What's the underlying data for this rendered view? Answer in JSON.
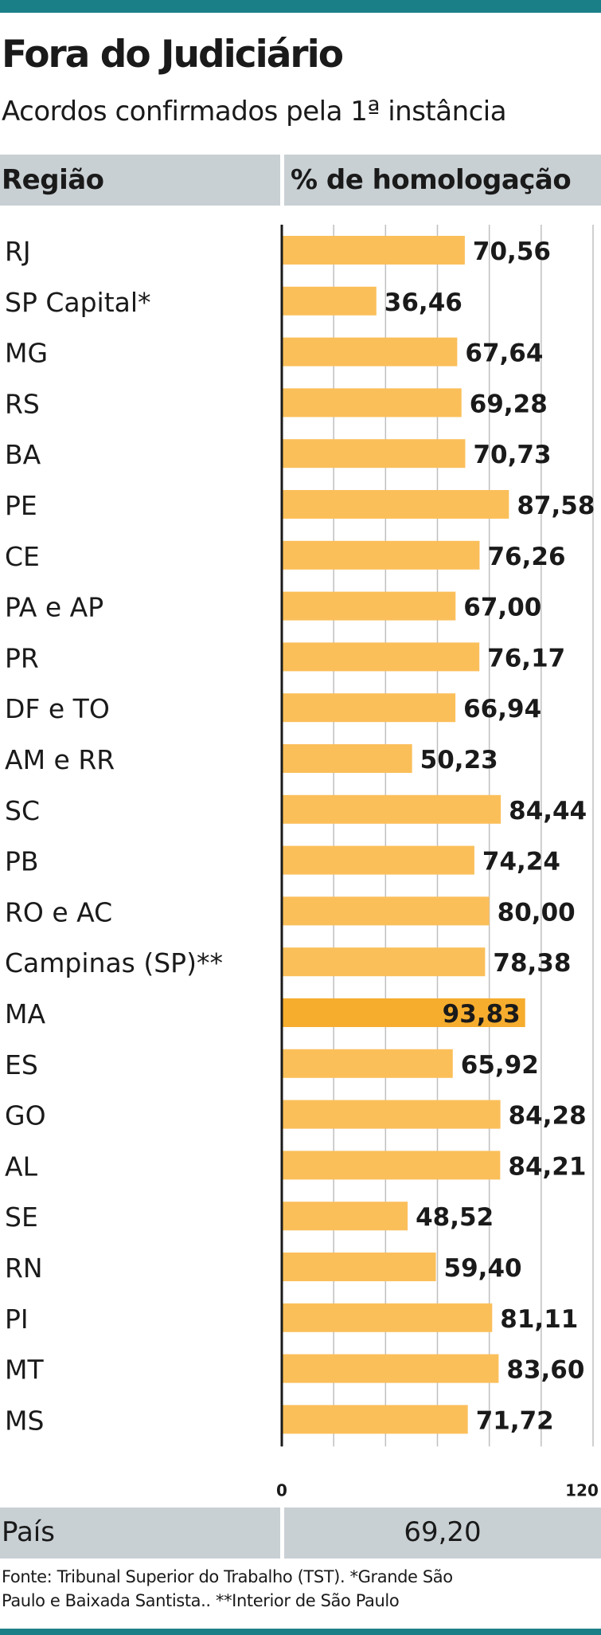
{
  "colors": {
    "accent_rule": "#1a7f87",
    "bar_fill": "#fbbf5a",
    "bar_highlight": "#f6ad2e",
    "header_band": "#c9d0d4",
    "grid": "#bfbfbf",
    "axis": "#1a1a1a"
  },
  "header": {
    "title": "Fora do Judiciário",
    "subtitle": "Acordos confirmados pela 1ª instância",
    "col_region": "Região",
    "col_pct": "% de homologação"
  },
  "chart_data": {
    "type": "bar",
    "orientation": "horizontal",
    "title": "Fora do Judiciário",
    "subtitle": "Acordos confirmados pela 1ª instância",
    "xlabel": "% de homologação",
    "ylabel": "Região",
    "xlim": [
      0,
      120
    ],
    "x_tick_labels": [
      "0",
      "120"
    ],
    "grid": true,
    "highlight": "MA",
    "categories": [
      "RJ",
      "SP Capital*",
      "MG",
      "RS",
      "BA",
      "PE",
      "CE",
      "PA e AP",
      "PR",
      "DF e TO",
      "AM e RR",
      "SC",
      "PB",
      "RO e AC",
      "Campinas (SP)**",
      "MA",
      "ES",
      "GO",
      "AL",
      "SE",
      "RN",
      "PI",
      "MT",
      "MS"
    ],
    "values": [
      70.56,
      36.46,
      67.64,
      69.28,
      70.73,
      87.58,
      76.26,
      67.0,
      76.17,
      66.94,
      50.23,
      84.44,
      74.24,
      80.0,
      78.38,
      93.83,
      65.92,
      84.28,
      84.21,
      48.52,
      59.4,
      81.11,
      83.6,
      71.72
    ],
    "value_labels": [
      "70,56",
      "36,46",
      "67,64",
      "69,28",
      "70,73",
      "87,58",
      "76,26",
      "67,00",
      "76,17",
      "66,94",
      "50,23",
      "84,44",
      "74,24",
      "80,00",
      "78,38",
      "93,83",
      "65,92",
      "84,28",
      "84,21",
      "48,52",
      "59,40",
      "81,11",
      "83,60",
      "71,72"
    ]
  },
  "summary": {
    "label": "País",
    "value": "69,20"
  },
  "footnote": {
    "line1": "Fonte: Tribunal Superior do Trabalho (TST). *Grande São",
    "line2": "Paulo e Baixada Santista.. **Interior de São Paulo"
  }
}
